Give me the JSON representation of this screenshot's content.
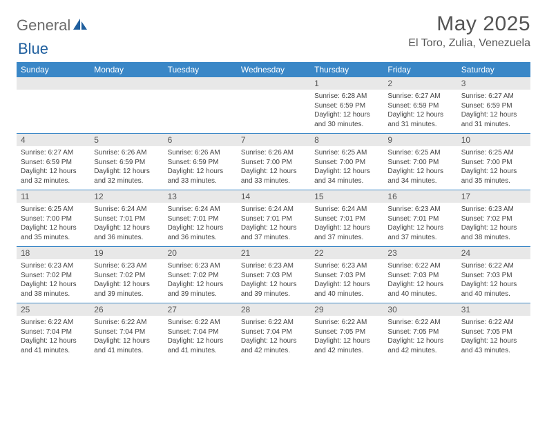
{
  "logo": {
    "text1": "General",
    "text2": "Blue",
    "icon_color": "#1f5f9e"
  },
  "title": "May 2025",
  "location": "El Toro, Zulia, Venezuela",
  "colors": {
    "header_bg": "#3a87c7",
    "daynum_bg": "#e8e8e8",
    "border": "#3a87c7",
    "text": "#444444"
  },
  "weekdays": [
    "Sunday",
    "Monday",
    "Tuesday",
    "Wednesday",
    "Thursday",
    "Friday",
    "Saturday"
  ],
  "weeks": [
    [
      {
        "n": "",
        "sr": "",
        "ss": "",
        "dl": ""
      },
      {
        "n": "",
        "sr": "",
        "ss": "",
        "dl": ""
      },
      {
        "n": "",
        "sr": "",
        "ss": "",
        "dl": ""
      },
      {
        "n": "",
        "sr": "",
        "ss": "",
        "dl": ""
      },
      {
        "n": "1",
        "sr": "6:28 AM",
        "ss": "6:59 PM",
        "dl": "12 hours and 30 minutes."
      },
      {
        "n": "2",
        "sr": "6:27 AM",
        "ss": "6:59 PM",
        "dl": "12 hours and 31 minutes."
      },
      {
        "n": "3",
        "sr": "6:27 AM",
        "ss": "6:59 PM",
        "dl": "12 hours and 31 minutes."
      }
    ],
    [
      {
        "n": "4",
        "sr": "6:27 AM",
        "ss": "6:59 PM",
        "dl": "12 hours and 32 minutes."
      },
      {
        "n": "5",
        "sr": "6:26 AM",
        "ss": "6:59 PM",
        "dl": "12 hours and 32 minutes."
      },
      {
        "n": "6",
        "sr": "6:26 AM",
        "ss": "6:59 PM",
        "dl": "12 hours and 33 minutes."
      },
      {
        "n": "7",
        "sr": "6:26 AM",
        "ss": "7:00 PM",
        "dl": "12 hours and 33 minutes."
      },
      {
        "n": "8",
        "sr": "6:25 AM",
        "ss": "7:00 PM",
        "dl": "12 hours and 34 minutes."
      },
      {
        "n": "9",
        "sr": "6:25 AM",
        "ss": "7:00 PM",
        "dl": "12 hours and 34 minutes."
      },
      {
        "n": "10",
        "sr": "6:25 AM",
        "ss": "7:00 PM",
        "dl": "12 hours and 35 minutes."
      }
    ],
    [
      {
        "n": "11",
        "sr": "6:25 AM",
        "ss": "7:00 PM",
        "dl": "12 hours and 35 minutes."
      },
      {
        "n": "12",
        "sr": "6:24 AM",
        "ss": "7:01 PM",
        "dl": "12 hours and 36 minutes."
      },
      {
        "n": "13",
        "sr": "6:24 AM",
        "ss": "7:01 PM",
        "dl": "12 hours and 36 minutes."
      },
      {
        "n": "14",
        "sr": "6:24 AM",
        "ss": "7:01 PM",
        "dl": "12 hours and 37 minutes."
      },
      {
        "n": "15",
        "sr": "6:24 AM",
        "ss": "7:01 PM",
        "dl": "12 hours and 37 minutes."
      },
      {
        "n": "16",
        "sr": "6:23 AM",
        "ss": "7:01 PM",
        "dl": "12 hours and 37 minutes."
      },
      {
        "n": "17",
        "sr": "6:23 AM",
        "ss": "7:02 PM",
        "dl": "12 hours and 38 minutes."
      }
    ],
    [
      {
        "n": "18",
        "sr": "6:23 AM",
        "ss": "7:02 PM",
        "dl": "12 hours and 38 minutes."
      },
      {
        "n": "19",
        "sr": "6:23 AM",
        "ss": "7:02 PM",
        "dl": "12 hours and 39 minutes."
      },
      {
        "n": "20",
        "sr": "6:23 AM",
        "ss": "7:02 PM",
        "dl": "12 hours and 39 minutes."
      },
      {
        "n": "21",
        "sr": "6:23 AM",
        "ss": "7:03 PM",
        "dl": "12 hours and 39 minutes."
      },
      {
        "n": "22",
        "sr": "6:23 AM",
        "ss": "7:03 PM",
        "dl": "12 hours and 40 minutes."
      },
      {
        "n": "23",
        "sr": "6:22 AM",
        "ss": "7:03 PM",
        "dl": "12 hours and 40 minutes."
      },
      {
        "n": "24",
        "sr": "6:22 AM",
        "ss": "7:03 PM",
        "dl": "12 hours and 40 minutes."
      }
    ],
    [
      {
        "n": "25",
        "sr": "6:22 AM",
        "ss": "7:04 PM",
        "dl": "12 hours and 41 minutes."
      },
      {
        "n": "26",
        "sr": "6:22 AM",
        "ss": "7:04 PM",
        "dl": "12 hours and 41 minutes."
      },
      {
        "n": "27",
        "sr": "6:22 AM",
        "ss": "7:04 PM",
        "dl": "12 hours and 41 minutes."
      },
      {
        "n": "28",
        "sr": "6:22 AM",
        "ss": "7:04 PM",
        "dl": "12 hours and 42 minutes."
      },
      {
        "n": "29",
        "sr": "6:22 AM",
        "ss": "7:05 PM",
        "dl": "12 hours and 42 minutes."
      },
      {
        "n": "30",
        "sr": "6:22 AM",
        "ss": "7:05 PM",
        "dl": "12 hours and 42 minutes."
      },
      {
        "n": "31",
        "sr": "6:22 AM",
        "ss": "7:05 PM",
        "dl": "12 hours and 43 minutes."
      }
    ]
  ],
  "labels": {
    "sunrise": "Sunrise:",
    "sunset": "Sunset:",
    "daylight": "Daylight:"
  }
}
